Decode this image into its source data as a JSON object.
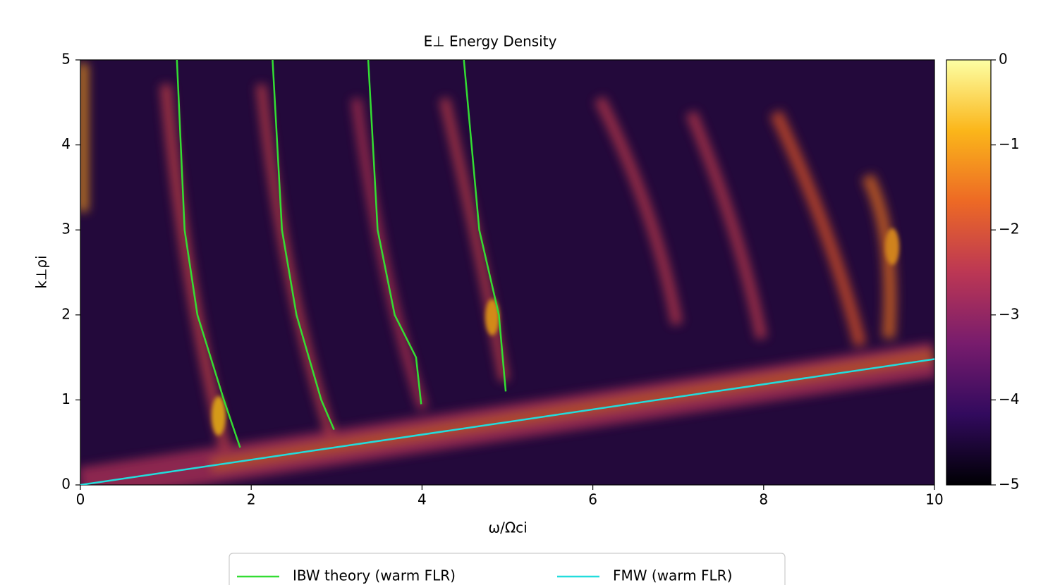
{
  "chart_data": {
    "type": "heatmap",
    "title": "E⊥ Energy Density",
    "x_label": "ω/Ωci",
    "y_label": "k⊥ρi",
    "xlim": [
      0,
      10
    ],
    "xticks": [
      0,
      2,
      4,
      6,
      8,
      10
    ],
    "ylim": [
      0,
      5
    ],
    "yticks": [
      0,
      1,
      2,
      3,
      4,
      5
    ],
    "clim": [
      -5,
      0
    ],
    "cticks": [
      0,
      {
        "value": -1,
        "label": "−1"
      },
      {
        "value": -2,
        "label": "−2"
      },
      {
        "value": -3,
        "label": "−3"
      },
      {
        "value": -4,
        "label": "−4"
      },
      {
        "value": -5,
        "label": "−5"
      }
    ],
    "colormap": [
      "#000004",
      "#320a5e",
      "#781c6d",
      "#bc3754",
      "#ed6925",
      "#fbb61a",
      "#fcffa4"
    ],
    "legend": "lower center",
    "series": [
      {
        "name": "IBW theory (warm FLR)",
        "color": "#33dd33",
        "curves": [
          {
            "x": [
              1.13,
              1.22,
              1.37,
              1.68,
              1.87
            ],
            "y": [
              5,
              3,
              2,
              1,
              0.44
            ]
          },
          {
            "x": [
              2.25,
              2.36,
              2.53,
              2.82,
              2.97
            ],
            "y": [
              5,
              3,
              2,
              1,
              0.65
            ]
          },
          {
            "x": [
              3.37,
              3.48,
              3.68,
              3.93,
              3.99
            ],
            "y": [
              5,
              3,
              2,
              1.5,
              0.95
            ]
          },
          {
            "x": [
              4.49,
              4.67,
              4.9,
              4.98
            ],
            "y": [
              5,
              3,
              2,
              1.1
            ]
          }
        ]
      },
      {
        "name": "FMW (warm FLR)",
        "color": "#22dddd",
        "curves": [
          {
            "x": [
              0,
              10
            ],
            "y": [
              0,
              1.48
            ]
          }
        ]
      }
    ]
  }
}
